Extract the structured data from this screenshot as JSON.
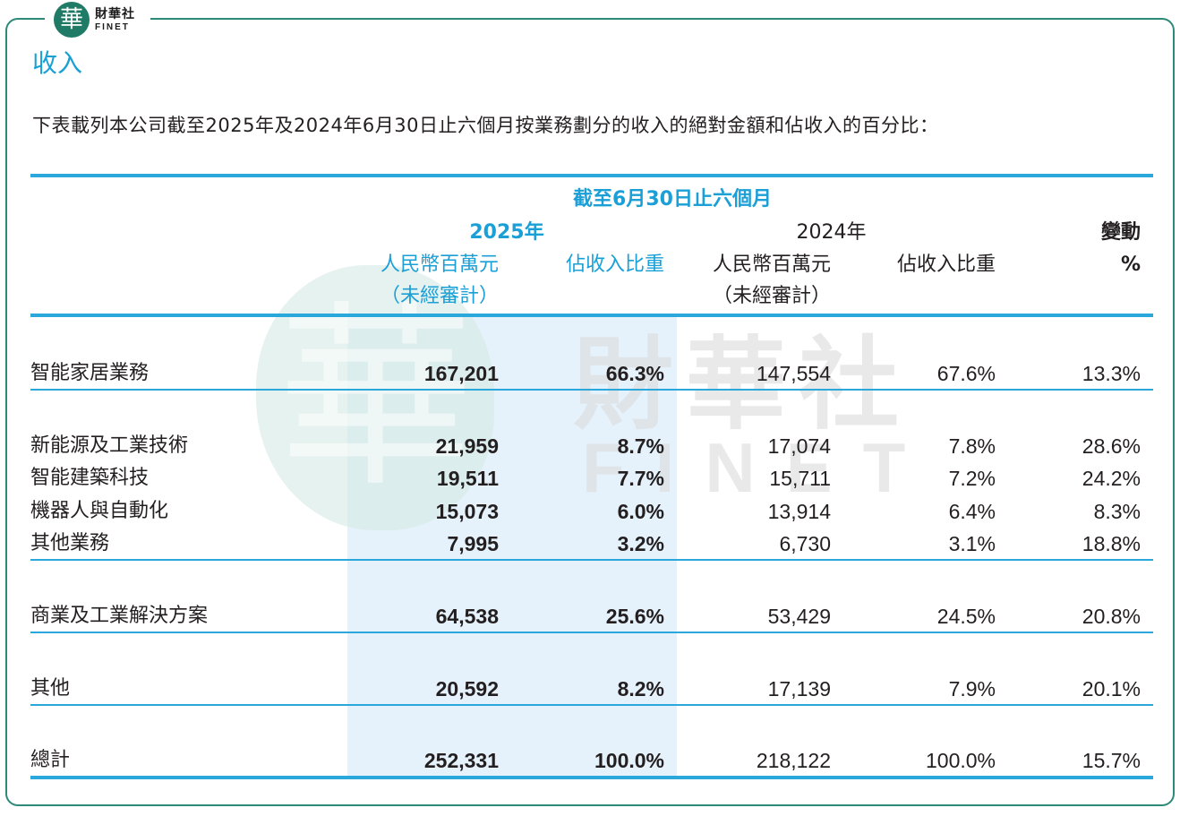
{
  "brand": {
    "seal_char": "華",
    "name_cn": "財華社",
    "name_en": "FINET",
    "watermark_cn": "財華社",
    "watermark_en": "FINET"
  },
  "title": "收入",
  "intro": "下表載列本公司截至2025年及2024年6月30日止六個月按業務劃分的收入的絕對金額和佔收入的百分比：",
  "table": {
    "period_header": "截至6月30日止六個月",
    "year_2025": "2025年",
    "year_2024": "2024年",
    "change_header": "變動",
    "change_unit": "%",
    "col_rmb": "人民幣百萬元",
    "col_unaudited": "（未經審計）",
    "col_share": "佔收入比重",
    "rows": [
      {
        "label": "智能家居業務",
        "v2025": "167,201",
        "s2025": "66.3%",
        "v2024": "147,554",
        "s2024": "67.6%",
        "change": "13.3%"
      },
      {
        "label": "新能源及工業技術",
        "v2025": "21,959",
        "s2025": "8.7%",
        "v2024": "17,074",
        "s2024": "7.8%",
        "change": "28.6%"
      },
      {
        "label": "智能建築科技",
        "v2025": "19,511",
        "s2025": "7.7%",
        "v2024": "15,711",
        "s2024": "7.2%",
        "change": "24.2%"
      },
      {
        "label": "機器人與自動化",
        "v2025": "15,073",
        "s2025": "6.0%",
        "v2024": "13,914",
        "s2024": "6.4%",
        "change": "8.3%"
      },
      {
        "label": "其他業務",
        "v2025": "7,995",
        "s2025": "3.2%",
        "v2024": "6,730",
        "s2024": "3.1%",
        "change": "18.8%"
      },
      {
        "label": "商業及工業解決方案",
        "v2025": "64,538",
        "s2025": "25.6%",
        "v2024": "53,429",
        "s2024": "24.5%",
        "change": "20.8%"
      },
      {
        "label": "其他",
        "v2025": "20,592",
        "s2025": "8.2%",
        "v2024": "17,139",
        "s2024": "7.9%",
        "change": "20.1%"
      },
      {
        "label": "總計",
        "v2025": "252,331",
        "s2025": "100.0%",
        "v2024": "218,122",
        "s2024": "100.0%",
        "change": "15.7%"
      }
    ]
  },
  "colors": {
    "accent_blue": "#1a9fd6",
    "rule_blue": "#2aa8dc",
    "frame_green": "#2e8a78",
    "highlight": "#e6f2fb"
  }
}
